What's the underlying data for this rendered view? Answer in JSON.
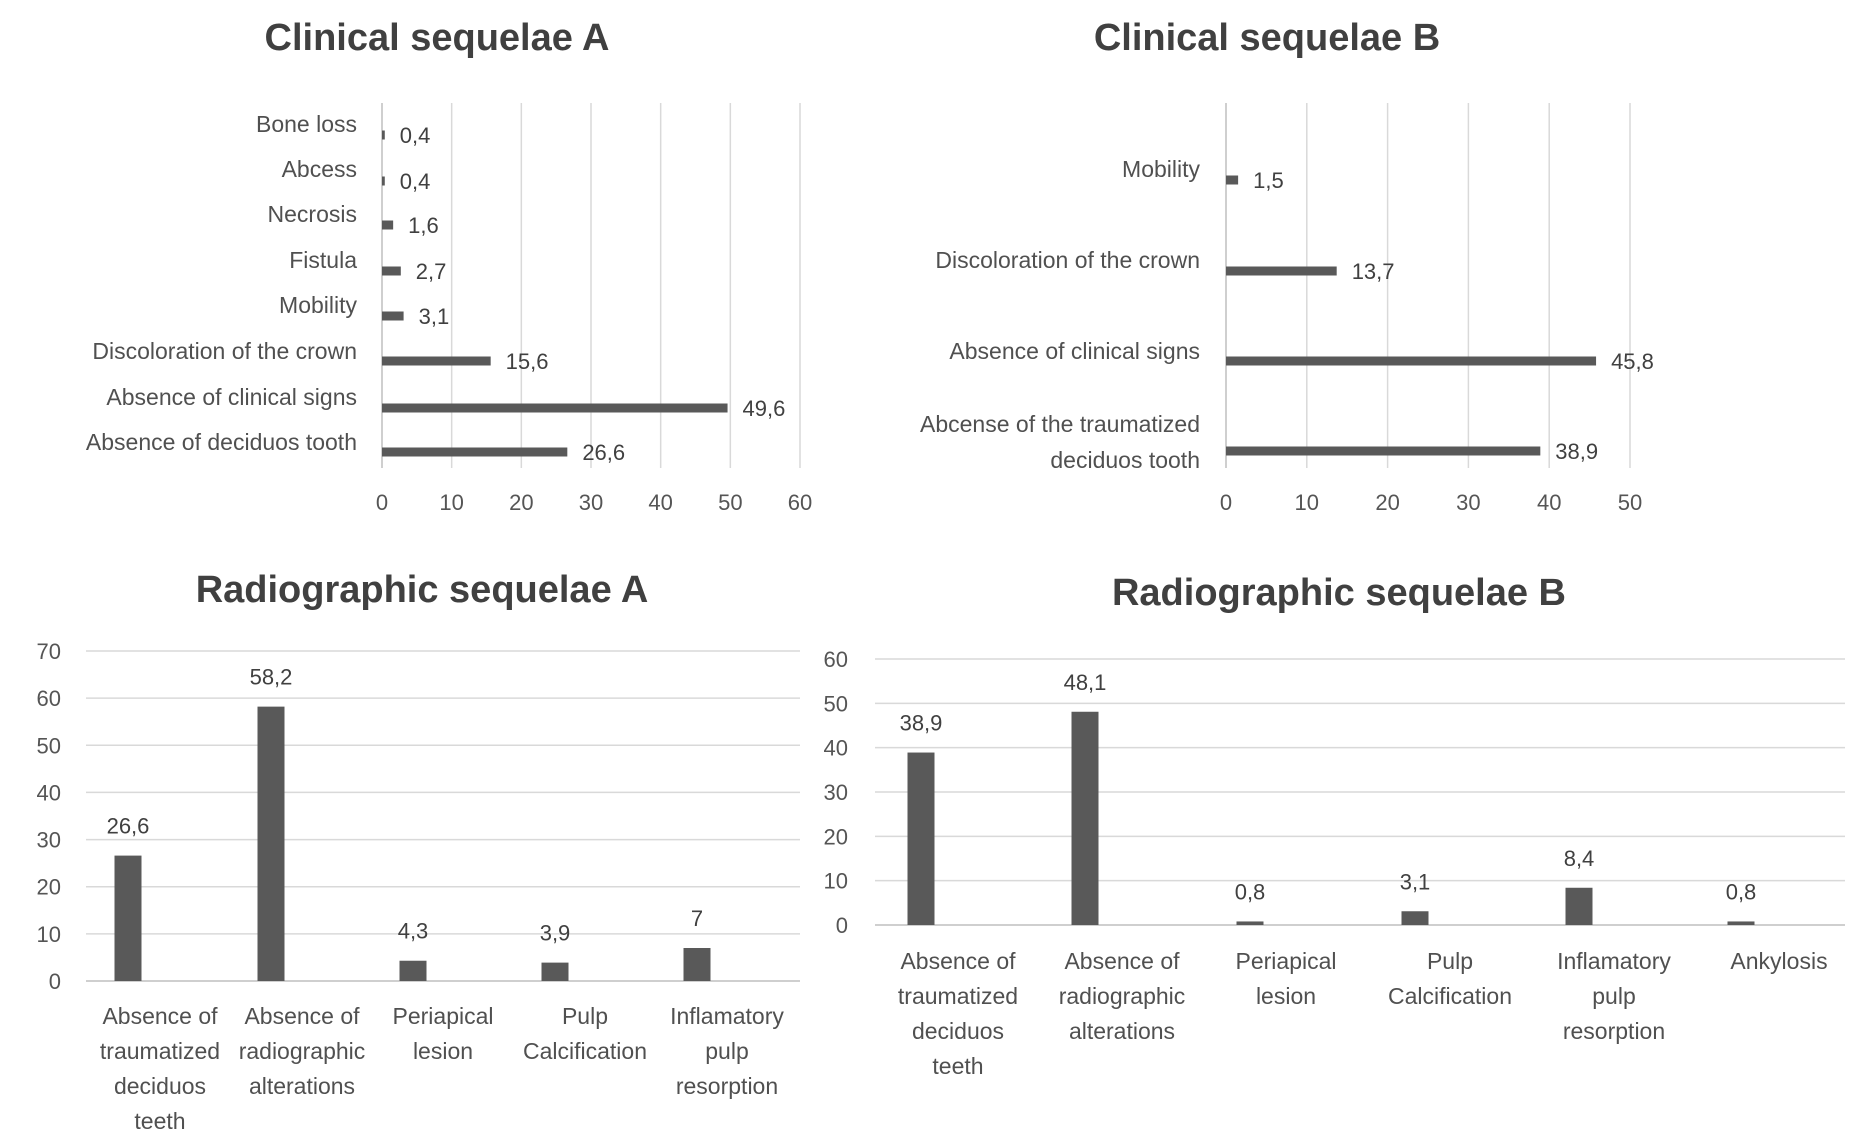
{
  "colors": {
    "bar": "#595959",
    "grid": "#d9d9d9",
    "text": "#404040"
  },
  "chart_data": [
    {
      "type": "bar",
      "orientation": "horizontal",
      "title": "Clinical sequelae A",
      "categories": [
        "Bone loss",
        "Abcess",
        "Necrosis",
        "Fistula",
        "Mobility",
        "Discoloration of the crown",
        "Absence of clinical signs",
        "Absence of deciduos tooth"
      ],
      "values": [
        0.4,
        0.4,
        1.6,
        2.7,
        3.1,
        15.6,
        49.6,
        26.6
      ],
      "data_labels": [
        "0,4",
        "0,4",
        "1,6",
        "2,7",
        "3,1",
        "15,6",
        "49,6",
        "26,6"
      ],
      "xlim": [
        0,
        60
      ],
      "ticks": [
        0,
        10,
        20,
        30,
        40,
        50,
        60
      ],
      "grid": true,
      "legend": "none"
    },
    {
      "type": "bar",
      "orientation": "horizontal",
      "title": "Clinical sequelae B",
      "categories": [
        "Mobility",
        "Discoloration of the crown",
        "Absence of clinical signs",
        "Abcense of the traumatized deciduos tooth"
      ],
      "values": [
        1.5,
        13.7,
        45.8,
        38.9
      ],
      "data_labels": [
        "1,5",
        "13,7",
        "45,8",
        "38,9"
      ],
      "xlim": [
        0,
        50
      ],
      "ticks": [
        0,
        10,
        20,
        30,
        40,
        50
      ],
      "grid": true,
      "legend": "none"
    },
    {
      "type": "bar",
      "orientation": "vertical",
      "title": "Radiographic sequelae A",
      "categories": [
        "Absence of traumatized deciduos teeth",
        "Absence of radiographic alterations",
        "Periapical lesion",
        "Pulp Calcification",
        "Inflamatory pulp resorption"
      ],
      "values": [
        26.6,
        58.2,
        4.3,
        3.9,
        7
      ],
      "data_labels": [
        "26,6",
        "58,2",
        "4,3",
        "3,9",
        "7"
      ],
      "ylim": [
        0,
        70
      ],
      "ticks": [
        0,
        10,
        20,
        30,
        40,
        50,
        60,
        70
      ],
      "grid": true,
      "legend": "none"
    },
    {
      "type": "bar",
      "orientation": "vertical",
      "title": "Radiographic sequelae B",
      "categories": [
        "Absence of traumatized deciduos teeth",
        "Absence of radiographic alterations",
        "Periapical lesion",
        "Pulp Calcification",
        "Inflamatory pulp resorption",
        "Ankylosis"
      ],
      "values": [
        38.9,
        48.1,
        0.8,
        3.1,
        8.4,
        0.8
      ],
      "data_labels": [
        "38,9",
        "48,1",
        "0,8",
        "3,1",
        "8,4",
        "0,8"
      ],
      "ylim": [
        0,
        60
      ],
      "ticks": [
        0,
        10,
        20,
        30,
        40,
        50,
        60
      ],
      "grid": true,
      "legend": "none"
    }
  ]
}
